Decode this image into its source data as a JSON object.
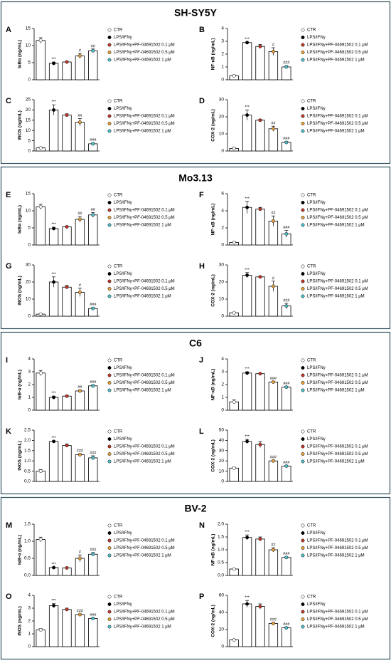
{
  "sections": [
    {
      "title": "SH-SY5Y"
    },
    {
      "title": "Mo3.13"
    },
    {
      "title": "C6"
    },
    {
      "title": "BV-2"
    }
  ],
  "chart_data": [
    {
      "type": "bar",
      "panel": "A",
      "ylabel": "IκBα (ng/mL)",
      "categories": [
        "CTR",
        "LPS/IFNγ",
        "LPS/IFNγ+PF-04691502 0.1 μM",
        "LPS/IFNγ+PF-04691502 0.5 μM",
        "LPS/IFNγ+PF-04691502 1 μM"
      ],
      "colors": [
        "#ffffff",
        "#000000",
        "#c0392b",
        "#e8a33d",
        "#4fc1c9"
      ],
      "values": [
        11.5,
        4.8,
        5.2,
        7.0,
        8.5
      ],
      "errors": [
        0.8,
        0.4,
        0.2,
        0.7,
        0.5
      ],
      "annotations": [
        null,
        "***",
        null,
        "#",
        "##"
      ],
      "ylim": [
        0,
        15
      ],
      "yticks": [
        0,
        5,
        10,
        15
      ]
    },
    {
      "type": "bar",
      "panel": "B",
      "ylabel": "NF-κB (ng/mL)",
      "categories": [
        "CTR",
        "LPS/IFNγ",
        "LPS/IFNγ+PF-04691502 0.1 μM",
        "LPS/IFNγ+PF-04691502 0.5 μM",
        "LPS/IFNγ+PF-04691502 1 μM"
      ],
      "colors": [
        "#ffffff",
        "#000000",
        "#c0392b",
        "#e8a33d",
        "#4fc1c9"
      ],
      "values": [
        0.3,
        2.9,
        2.6,
        2.2,
        1.0
      ],
      "errors": [
        0.08,
        0.05,
        0.15,
        0.3,
        0.1
      ],
      "annotations": [
        null,
        "***",
        null,
        "#",
        "###"
      ],
      "ylim": [
        0,
        4
      ],
      "yticks": [
        0,
        1,
        2,
        3,
        4
      ]
    },
    {
      "type": "bar",
      "panel": "C",
      "ylabel": "iNOS (ng/mL)",
      "categories": [
        "CTR",
        "LPS/IFNγ",
        "LPS/IFNγ+PF-04691502 0.1 μM",
        "LPS/IFNγ+PF-04691502 0.5 μM",
        "LPS/IFNγ+PF-04691502 1 μM"
      ],
      "colors": [
        "#ffffff",
        "#000000",
        "#c0392b",
        "#e8a33d",
        "#4fc1c9"
      ],
      "values": [
        1.5,
        20,
        17.5,
        14,
        3.5
      ],
      "errors": [
        0.4,
        2.5,
        0.6,
        1.8,
        0.5
      ],
      "annotations": [
        null,
        "***",
        null,
        "##",
        "###"
      ],
      "ylim": [
        0,
        25
      ],
      "yticks": [
        0,
        5,
        10,
        15,
        20,
        25
      ]
    },
    {
      "type": "bar",
      "panel": "D",
      "ylabel": "COX-2 (ng/mL)",
      "categories": [
        "CTR",
        "LPS/IFNγ",
        "LPS/IFNγ+PF-04691502 0.1 μM",
        "LPS/IFNγ+PF-04691502 0.5 μM",
        "LPS/IFNγ+PF-04691502 1 μM"
      ],
      "colors": [
        "#ffffff",
        "#000000",
        "#c0392b",
        "#e8a33d",
        "#4fc1c9"
      ],
      "values": [
        1.5,
        21,
        18,
        13,
        5
      ],
      "errors": [
        0.6,
        3,
        0.6,
        1.5,
        0.6
      ],
      "annotations": [
        null,
        "***",
        null,
        "##",
        "###"
      ],
      "ylim": [
        0,
        30
      ],
      "yticks": [
        0,
        10,
        20,
        30
      ]
    },
    {
      "type": "bar",
      "panel": "E",
      "ylabel": "IκBα (ng/mL)",
      "categories": [
        "CTR",
        "LPS/IFNγ",
        "LPS/IFNγ+PF-04691502 0.1 μM",
        "LPS/IFNγ+PF-04691502 0.5 μM",
        "LPS/IFNγ+PF-04691502 1 μM"
      ],
      "colors": [
        "#ffffff",
        "#000000",
        "#c0392b",
        "#e8a33d",
        "#4fc1c9"
      ],
      "values": [
        11.2,
        4.8,
        5.3,
        7.5,
        8.8
      ],
      "errors": [
        0.7,
        0.4,
        0.2,
        0.8,
        0.7
      ],
      "annotations": [
        null,
        "***",
        null,
        "##",
        "##"
      ],
      "ylim": [
        0,
        15
      ],
      "yticks": [
        0,
        5,
        10,
        15
      ]
    },
    {
      "type": "bar",
      "panel": "F",
      "ylabel": "NF-κB (ng/mL)",
      "categories": [
        "CTR",
        "LPS/IFNγ",
        "LPS/IFNγ+PF-04691502 0.1 μM",
        "LPS/IFNγ+PF-04691502 0.5 μM",
        "LPS/IFNγ+PF-04691502 1 μM"
      ],
      "colors": [
        "#ffffff",
        "#000000",
        "#c0392b",
        "#e8a33d",
        "#4fc1c9"
      ],
      "values": [
        0.3,
        4.4,
        4.2,
        2.8,
        1.3
      ],
      "errors": [
        0.1,
        0.7,
        0.2,
        0.6,
        0.4
      ],
      "annotations": [
        null,
        "***",
        null,
        "##",
        "###"
      ],
      "ylim": [
        0,
        6
      ],
      "yticks": [
        0,
        2,
        4,
        6
      ]
    },
    {
      "type": "bar",
      "panel": "G",
      "ylabel": "iNOS (ng/mL)",
      "categories": [
        "CTR",
        "LPS/IFNγ",
        "LPS/IFNγ+PF-04691502 0.1 μM",
        "LPS/IFNγ+PF-04691502 0.5 μM",
        "LPS/IFNγ+PF-04691502 1 μM"
      ],
      "colors": [
        "#ffffff",
        "#000000",
        "#c0392b",
        "#e8a33d",
        "#4fc1c9"
      ],
      "values": [
        1.2,
        20,
        17,
        14,
        4.5
      ],
      "errors": [
        0.3,
        3,
        1,
        2.5,
        0.6
      ],
      "annotations": [
        null,
        "***",
        null,
        "#",
        "###"
      ],
      "ylim": [
        0,
        30
      ],
      "yticks": [
        0,
        10,
        20,
        30
      ]
    },
    {
      "type": "bar",
      "panel": "H",
      "ylabel": "COX-2 (ng/mL)",
      "categories": [
        "CTR",
        "LPS/IFNγ",
        "LPS/IFNγ+PF-04691502 0.1 μM",
        "LPS/IFNγ+PF-04691502 0.5 μM",
        "LPS/IFNγ+PF-04691502 1 μM"
      ],
      "colors": [
        "#ffffff",
        "#000000",
        "#c0392b",
        "#e8a33d",
        "#4fc1c9"
      ],
      "values": [
        2,
        24,
        23,
        17.5,
        6
      ],
      "errors": [
        0.3,
        1.5,
        0.4,
        3,
        1.5
      ],
      "annotations": [
        null,
        "***",
        null,
        "#",
        "###"
      ],
      "ylim": [
        0,
        30
      ],
      "yticks": [
        0,
        10,
        20,
        30
      ]
    },
    {
      "type": "bar",
      "panel": "I",
      "ylabel": "IκB-α (ng/mL)",
      "categories": [
        "CTR",
        "LPS/IFNγ",
        "LPS/IFNγ+PF-04691502 0.1 μM",
        "LPS/IFNγ+PF-04691502 0.5 μM",
        "LPS/IFNγ+PF-04691502 1 μM"
      ],
      "colors": [
        "#ffffff",
        "#000000",
        "#c0392b",
        "#e8a33d",
        "#4fc1c9"
      ],
      "values": [
        2.9,
        1.0,
        1.1,
        1.5,
        1.9
      ],
      "errors": [
        0.2,
        0.1,
        0.05,
        0.08,
        0.08
      ],
      "annotations": [
        null,
        "***",
        null,
        "##",
        "###"
      ],
      "ylim": [
        0,
        4
      ],
      "yticks": [
        0,
        1,
        2,
        3,
        4
      ]
    },
    {
      "type": "bar",
      "panel": "J",
      "ylabel": "NF-κB (ng/mL)",
      "categories": [
        "CTR",
        "LPS/IFNγ",
        "LPS/IFNγ+PF-04691502 0.1 μM",
        "LPS/IFNγ+PF-04691502 0.5 μM",
        "LPS/IFNγ+PF-04691502 1 μM"
      ],
      "colors": [
        "#ffffff",
        "#000000",
        "#c0392b",
        "#e8a33d",
        "#4fc1c9"
      ],
      "values": [
        0.65,
        2.9,
        2.85,
        2.2,
        1.8
      ],
      "errors": [
        0.15,
        0.1,
        0.03,
        0.05,
        0.06
      ],
      "annotations": [
        null,
        "***",
        null,
        "###",
        "###"
      ],
      "ylim": [
        0,
        4
      ],
      "yticks": [
        0,
        1,
        2,
        3,
        4
      ]
    },
    {
      "type": "bar",
      "panel": "K",
      "ylabel": "iNOS (ng/mL)",
      "categories": [
        "CTR",
        "LPS/IFNγ",
        "LPS/IFNγ+PF-04691502 0.1 μM",
        "LPS/IFNγ+PF-04691502 0.5 μM",
        "LPS/IFNγ+PF-04691502 1 μM"
      ],
      "colors": [
        "#ffffff",
        "#000000",
        "#c0392b",
        "#e8a33d",
        "#4fc1c9"
      ],
      "values": [
        0.5,
        1.95,
        1.75,
        1.3,
        1.15
      ],
      "errors": [
        0.08,
        0.03,
        0.08,
        0.05,
        0.1
      ],
      "annotations": [
        null,
        "***",
        null,
        "###",
        "###"
      ],
      "ylim": [
        0,
        2.5
      ],
      "yticks": [
        {
          "value": 0,
          "label": "0.0"
        },
        0.5,
        {
          "value": 1,
          "label": "1.0"
        },
        1.5,
        {
          "value": 2,
          "label": "2.0"
        },
        2.5
      ]
    },
    {
      "type": "bar",
      "panel": "L",
      "ylabel": "COX-2 (ng/mL)",
      "categories": [
        "CTR",
        "LPS/IFNγ",
        "LPS/IFNγ+PF-04691502 0.1 μM",
        "LPS/IFNγ+PF-04691502 0.5 μM",
        "LPS/IFNγ+PF-04691502 1 μM"
      ],
      "colors": [
        "#ffffff",
        "#000000",
        "#c0392b",
        "#e8a33d",
        "#4fc1c9"
      ],
      "values": [
        13,
        39,
        36,
        20,
        15
      ],
      "errors": [
        1,
        2,
        3,
        0.8,
        0.6
      ],
      "annotations": [
        null,
        "***",
        null,
        "###",
        "###"
      ],
      "ylim": [
        0,
        50
      ],
      "yticks": [
        0,
        10,
        20,
        30,
        40,
        50
      ]
    },
    {
      "type": "bar",
      "panel": "M",
      "ylabel": "IκB-α (ng/mL)",
      "categories": [
        "CTR",
        "LPS/IFNγ",
        "LPS/IFNγ+PF-04691502 0.1 μM",
        "LPS/IFNγ+PF-04691502 0.5 μM",
        "LPS/IFNγ+PF-04691502 1 μM"
      ],
      "colors": [
        "#ffffff",
        "#000000",
        "#c0392b",
        "#e8a33d",
        "#4fc1c9"
      ],
      "values": [
        1.05,
        0.23,
        0.22,
        0.5,
        0.62
      ],
      "errors": [
        0.07,
        0.01,
        0.01,
        0.1,
        0.05
      ],
      "annotations": [
        null,
        "***",
        null,
        "#",
        "###"
      ],
      "ylim": [
        0,
        1.5
      ],
      "yticks": [
        {
          "value": 0,
          "label": "0.0"
        },
        0.5,
        {
          "value": 1,
          "label": "1.0"
        },
        1.5
      ]
    },
    {
      "type": "bar",
      "panel": "N",
      "ylabel": "NF-κB (ng/mL)",
      "categories": [
        "CTR",
        "LPS/IFNγ",
        "LPS/IFNγ+PF-04691502 0.1 μM",
        "LPS/IFNγ+PF-04691502 0.5 μM",
        "LPS/IFNγ+PF-04691502 1 μM"
      ],
      "colors": [
        "#ffffff",
        "#000000",
        "#c0392b",
        "#e8a33d",
        "#4fc1c9"
      ],
      "values": [
        0.25,
        1.48,
        1.42,
        1.0,
        0.7
      ],
      "errors": [
        0.02,
        0.1,
        0.08,
        0.08,
        0.03
      ],
      "annotations": [
        null,
        "***",
        null,
        "##",
        "###"
      ],
      "ylim": [
        0,
        2
      ],
      "yticks": [
        {
          "value": 0,
          "label": "0.0"
        },
        0.5,
        {
          "value": 1,
          "label": "1.0"
        },
        1.5,
        {
          "value": 2,
          "label": "2.0"
        }
      ]
    },
    {
      "type": "bar",
      "panel": "O",
      "ylabel": "iNOS (ng/mL)",
      "categories": [
        "CTR",
        "LPS/IFNγ",
        "LPS/IFNγ+PF-04691502 0.1 μM",
        "LPS/IFNγ+PF-04691502 0.5 μM",
        "LPS/IFNγ+PF-04691502 1 μM"
      ],
      "colors": [
        "#ffffff",
        "#000000",
        "#c0392b",
        "#e8a33d",
        "#4fc1c9"
      ],
      "values": [
        1.3,
        3.2,
        2.9,
        2.5,
        2.2
      ],
      "errors": [
        0.1,
        0.15,
        0.1,
        0.05,
        0.05
      ],
      "annotations": [
        null,
        "***",
        null,
        "###",
        "###"
      ],
      "ylim": [
        0,
        4
      ],
      "yticks": [
        0,
        1,
        2,
        3,
        4
      ]
    },
    {
      "type": "bar",
      "panel": "P",
      "ylabel": "COX-2 (ng/mL)",
      "categories": [
        "CTR",
        "LPS/IFNγ",
        "LPS/IFNγ+PF-04691502 0.1 μM",
        "LPS/IFNγ+PF-04691502 0.5 μM",
        "LPS/IFNγ+PF-04691502 1 μM"
      ],
      "colors": [
        "#ffffff",
        "#000000",
        "#c0392b",
        "#e8a33d",
        "#4fc1c9"
      ],
      "values": [
        8,
        50,
        47,
        27,
        22
      ],
      "errors": [
        0.8,
        4,
        3,
        1.5,
        1
      ],
      "annotations": [
        null,
        "***",
        null,
        "###",
        "###"
      ],
      "ylim": [
        0,
        60
      ],
      "yticks": [
        0,
        20,
        40,
        60
      ]
    }
  ]
}
